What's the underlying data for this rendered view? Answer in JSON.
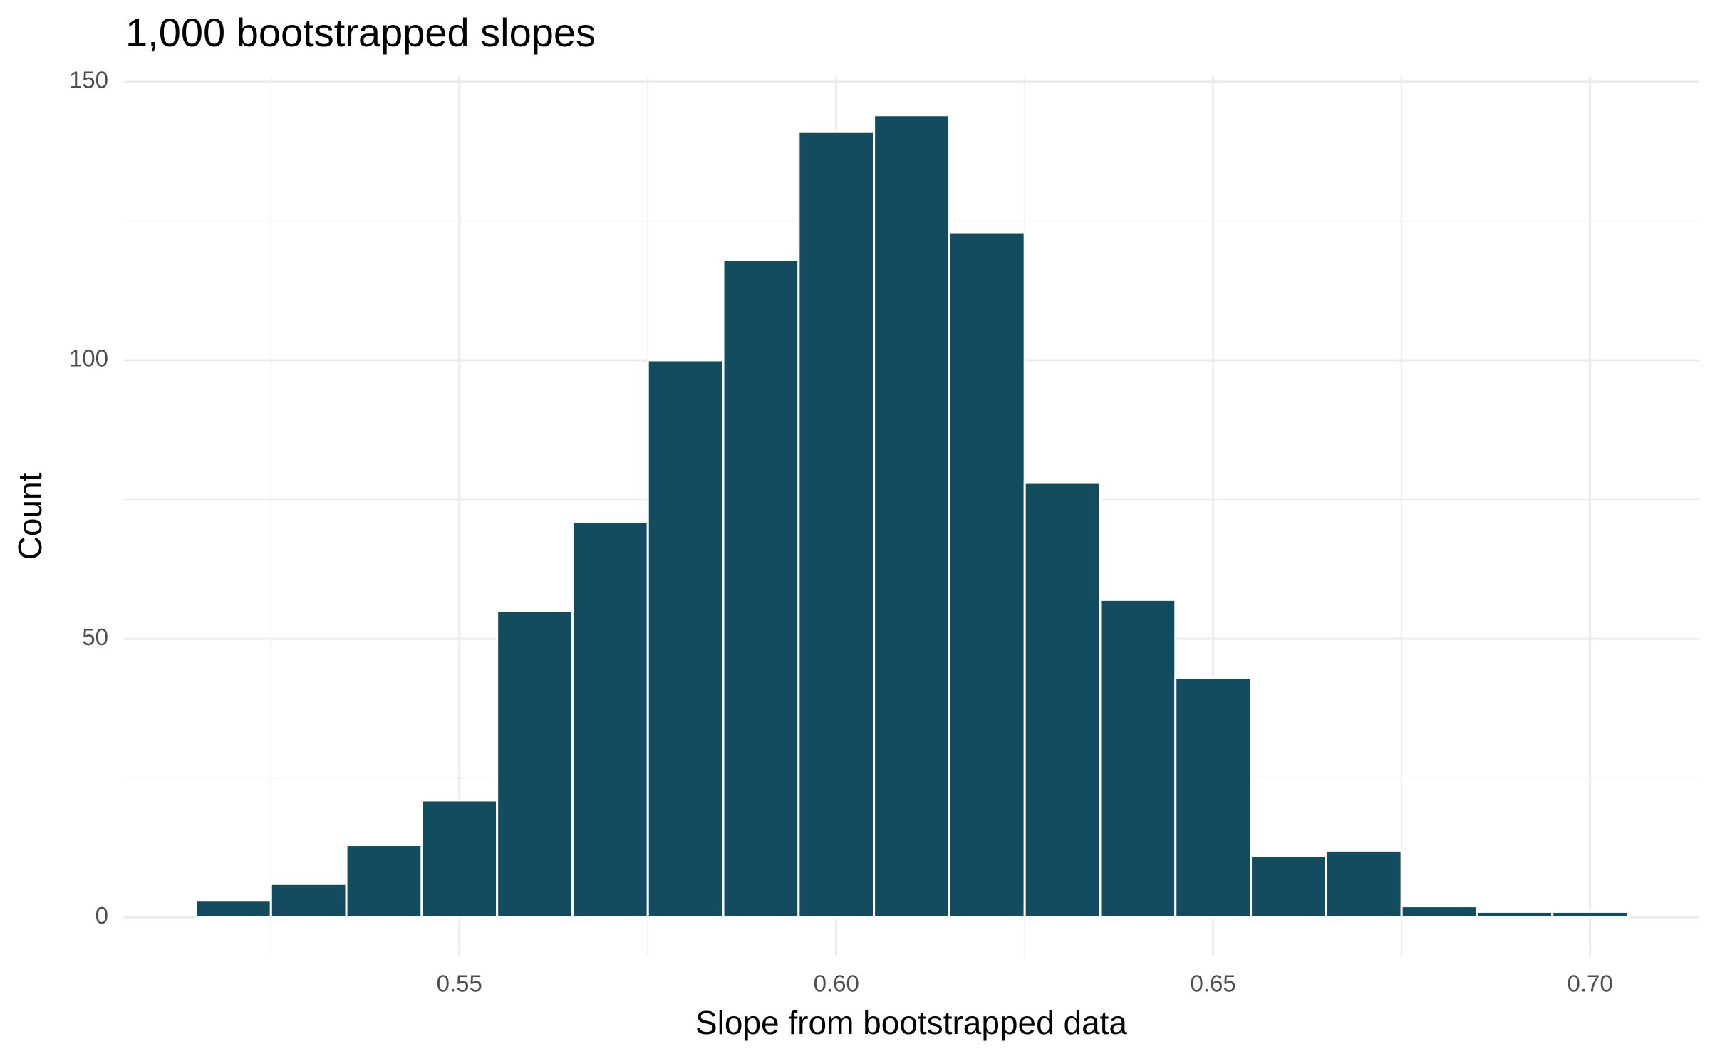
{
  "chart_data": {
    "type": "histogram",
    "title": "1,000 bootstrapped slopes",
    "x_label": "Slope from bootstrapped data",
    "y_label": "Count",
    "bins": [
      0.515,
      0.525,
      0.535,
      0.545,
      0.555,
      0.565,
      0.575,
      0.585,
      0.595,
      0.605,
      0.615,
      0.625,
      0.635,
      0.645,
      0.655,
      0.665,
      0.675,
      0.685,
      0.695,
      0.705
    ],
    "values": [
      3,
      6,
      13,
      21,
      55,
      71,
      100,
      118,
      141,
      144,
      123,
      78,
      57,
      43,
      11,
      12,
      2,
      1,
      1
    ],
    "color": "#134b5f",
    "xlim": [
      0.5055,
      0.7145
    ],
    "ylim": [
      -7,
      151
    ],
    "xticks": [
      0.55,
      {
        "value": 0.6,
        "label": "0.60"
      },
      0.65,
      {
        "value": 0.7,
        "label": "0.70"
      }
    ],
    "yticks": [
      0,
      50,
      100,
      150
    ],
    "xminor": [
      0.525,
      0.575,
      0.625,
      0.675
    ],
    "yminor": [
      25,
      75,
      125
    ],
    "grid": true
  }
}
